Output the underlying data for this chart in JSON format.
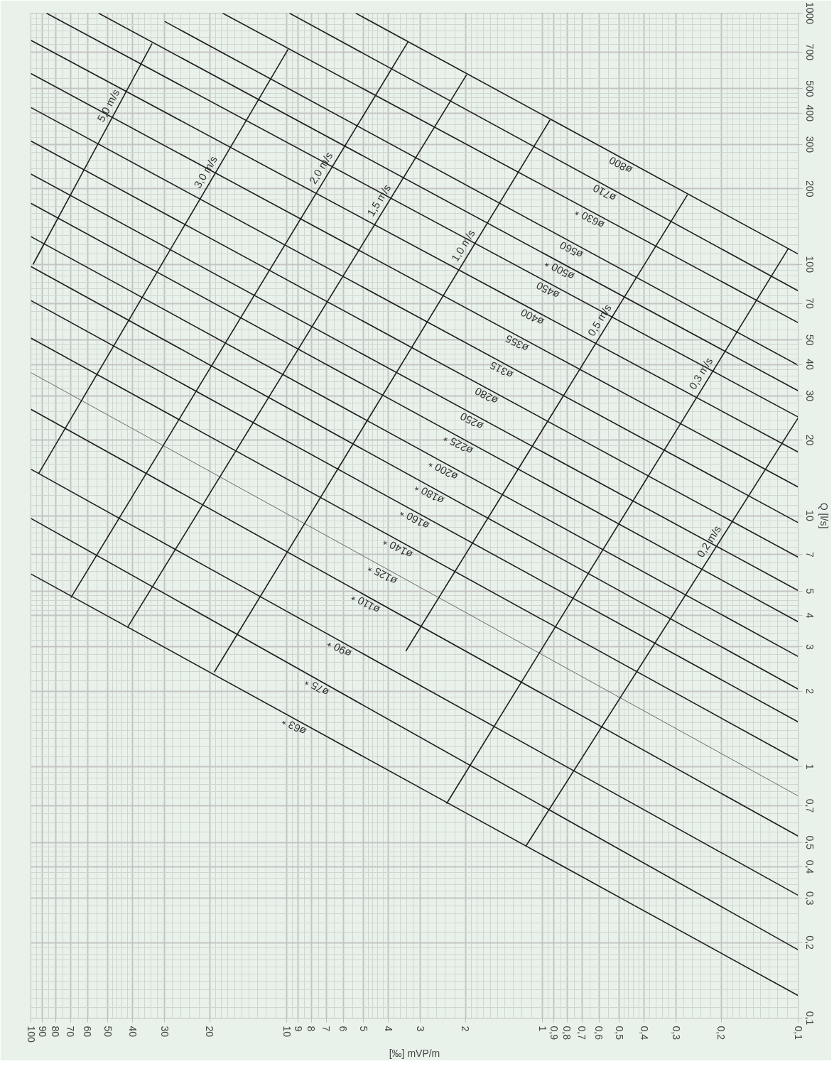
{
  "chart_data": {
    "type": "line",
    "log": "xy",
    "xlabel": "[‰] mVP/m",
    "ylabel": "Q [l/s]",
    "xlim": [
      100,
      0.1
    ],
    "ylim": [
      0.1,
      1000
    ],
    "grid": true,
    "xticks": [
      100,
      90,
      80,
      70,
      60,
      50,
      40,
      30,
      20,
      10,
      9,
      8,
      7,
      6,
      5,
      4,
      3,
      2,
      1,
      {
        "value": 0.9,
        "label": "0,9"
      },
      {
        "value": 0.8,
        "label": "0,8"
      },
      {
        "value": 0.7,
        "label": "0,7"
      },
      {
        "value": 0.6,
        "label": "0,6"
      },
      {
        "value": 0.5,
        "label": "0,5"
      },
      {
        "value": 0.4,
        "label": "0,4"
      },
      {
        "value": 0.3,
        "label": "0,3"
      },
      {
        "value": 0.2,
        "label": "0,2"
      },
      {
        "value": 0.1,
        "label": "0,1"
      }
    ],
    "yticks": [
      1000,
      700,
      500,
      400,
      300,
      200,
      100,
      70,
      50,
      40,
      30,
      20,
      10,
      7,
      5,
      4,
      3,
      2,
      1,
      {
        "value": 0.7,
        "label": "0,7"
      },
      {
        "value": 0.5,
        "label": "0,5"
      },
      {
        "value": 0.4,
        "label": "0,4"
      },
      {
        "value": 0.3,
        "label": "0,3"
      },
      {
        "value": 0.2,
        "label": "0,2"
      },
      {
        "value": 0.1,
        "label": "0,1"
      }
    ],
    "series": [
      {
        "name": "ø63 *",
        "color": "#1e1e1e",
        "x": [
          100,
          0.1
        ],
        "values": [
          5.86,
          0.123
        ]
      },
      {
        "name": "ø75 *",
        "color": "#1e1e1e",
        "x": [
          100,
          0.1
        ],
        "values": [
          9.75,
          0.187
        ]
      },
      {
        "name": "ø90 *",
        "color": "#1e1e1e",
        "x": [
          100,
          0.1
        ],
        "values": [
          15.3,
          0.308
        ]
      },
      {
        "name": "ø110 *",
        "color": "#1e1e1e",
        "x": [
          100,
          0.1
        ],
        "values": [
          26.5,
          0.53
        ]
      },
      {
        "name": "ø125 *",
        "color": "#6a6a6a",
        "x": [
          100,
          0.1
        ],
        "values": [
          37.1,
          0.766
        ]
      },
      {
        "name": "ø140 *",
        "color": "#1e1e1e",
        "x": [
          100,
          0.1
        ],
        "values": [
          50.9,
          1.06
        ]
      },
      {
        "name": "ø160 *",
        "color": "#1e1e1e",
        "x": [
          100,
          0.1
        ],
        "values": [
          71.8,
          1.51
        ]
      },
      {
        "name": "ø180 *",
        "color": "#1e1e1e",
        "x": [
          100,
          0.1
        ],
        "values": [
          98.1,
          2.04
        ]
      },
      {
        "name": "ø200 *",
        "color": "#1e1e1e",
        "x": [
          100,
          0.1
        ],
        "values": [
          129,
          2.75
        ]
      },
      {
        "name": "ø225 *",
        "color": "#1e1e1e",
        "x": [
          100,
          0.1
        ],
        "values": [
          175,
          3.78
        ]
      },
      {
        "name": "ø250",
        "color": "#1e1e1e",
        "x": [
          100,
          0.1
        ],
        "values": [
          229,
          5.03
        ]
      },
      {
        "name": "ø280",
        "color": "#1e1e1e",
        "x": [
          100,
          0.1
        ],
        "values": [
          310,
          6.83
        ]
      },
      {
        "name": "ø315",
        "color": "#1e1e1e",
        "x": [
          100,
          0.1
        ],
        "values": [
          421,
          9.38
        ]
      },
      {
        "name": "ø355",
        "color": "#1e1e1e",
        "x": [
          100,
          0.1
        ],
        "values": [
          575,
          13.0
        ]
      },
      {
        "name": "ø400",
        "color": "#1e1e1e",
        "x": [
          100,
          0.1
        ],
        "values": [
          780,
          17.9
        ]
      },
      {
        "name": "ø450",
        "color": "#1e1e1e",
        "x": [
          87.0,
          0.1
        ],
        "values": [
          1000,
          24.7
        ]
      },
      {
        "name": "ø500 *",
        "color": "#1e1e1e",
        "x": [
          54.4,
          0.1
        ],
        "values": [
          1000,
          31.4
        ]
      },
      {
        "name": "ø560",
        "color": "#1e1e1e",
        "x": [
          30.0,
          0.1
        ],
        "values": [
          927,
          39.7
        ]
      },
      {
        "name": "ø630 *",
        "color": "#1e1e1e",
        "x": [
          17.8,
          0.1
        ],
        "values": [
          1000,
          58.6
        ]
      },
      {
        "name": "ø710",
        "color": "#1e1e1e",
        "x": [
          9.75,
          0.1
        ],
        "values": [
          1000,
          78.5
        ]
      },
      {
        "name": "ø800",
        "color": "#1e1e1e",
        "x": [
          5.37,
          0.1
        ],
        "values": [
          1000,
          110
        ]
      },
      {
        "name": "5,0 m/s",
        "color": "#1e1e1e",
        "x": [
          33.6,
          98.1
        ],
        "values": [
          756,
          100
        ]
      },
      {
        "name": "3,0 m/s",
        "color": "#1e1e1e",
        "x": [
          9.87,
          93.3
        ],
        "values": [
          718,
          14.7
        ]
      },
      {
        "name": "2,0 m/s",
        "color": "#1e1e1e",
        "x": [
          3.36,
          69.7
        ],
        "values": [
          766,
          4.72
        ]
      },
      {
        "name": "1,5 m/s",
        "color": "#1e1e1e",
        "x": [
          1.98,
          41.9
        ],
        "values": [
          568,
          3.59
        ]
      },
      {
        "name": "1,0 m/s",
        "color": "#1e1e1e",
        "x": [
          0.933,
          19.2
        ],
        "values": [
          376,
          2.38
        ]
      },
      {
        "name": "0,5 m/s",
        "color": "#1e1e1e",
        "x": [
          0.271,
          3.42
        ],
        "values": [
          189,
          2.89
        ]
      },
      {
        "name": "0,3 m/s",
        "color": "#1e1e1e",
        "x": [
          0.109,
          2.37
        ],
        "values": [
          116,
          0.714
        ]
      },
      {
        "name": "0,2 m/s",
        "color": "#1e1e1e",
        "x": [
          0.1,
          1.16
        ],
        "values": [
          24.5,
          0.484
        ]
      }
    ]
  }
}
